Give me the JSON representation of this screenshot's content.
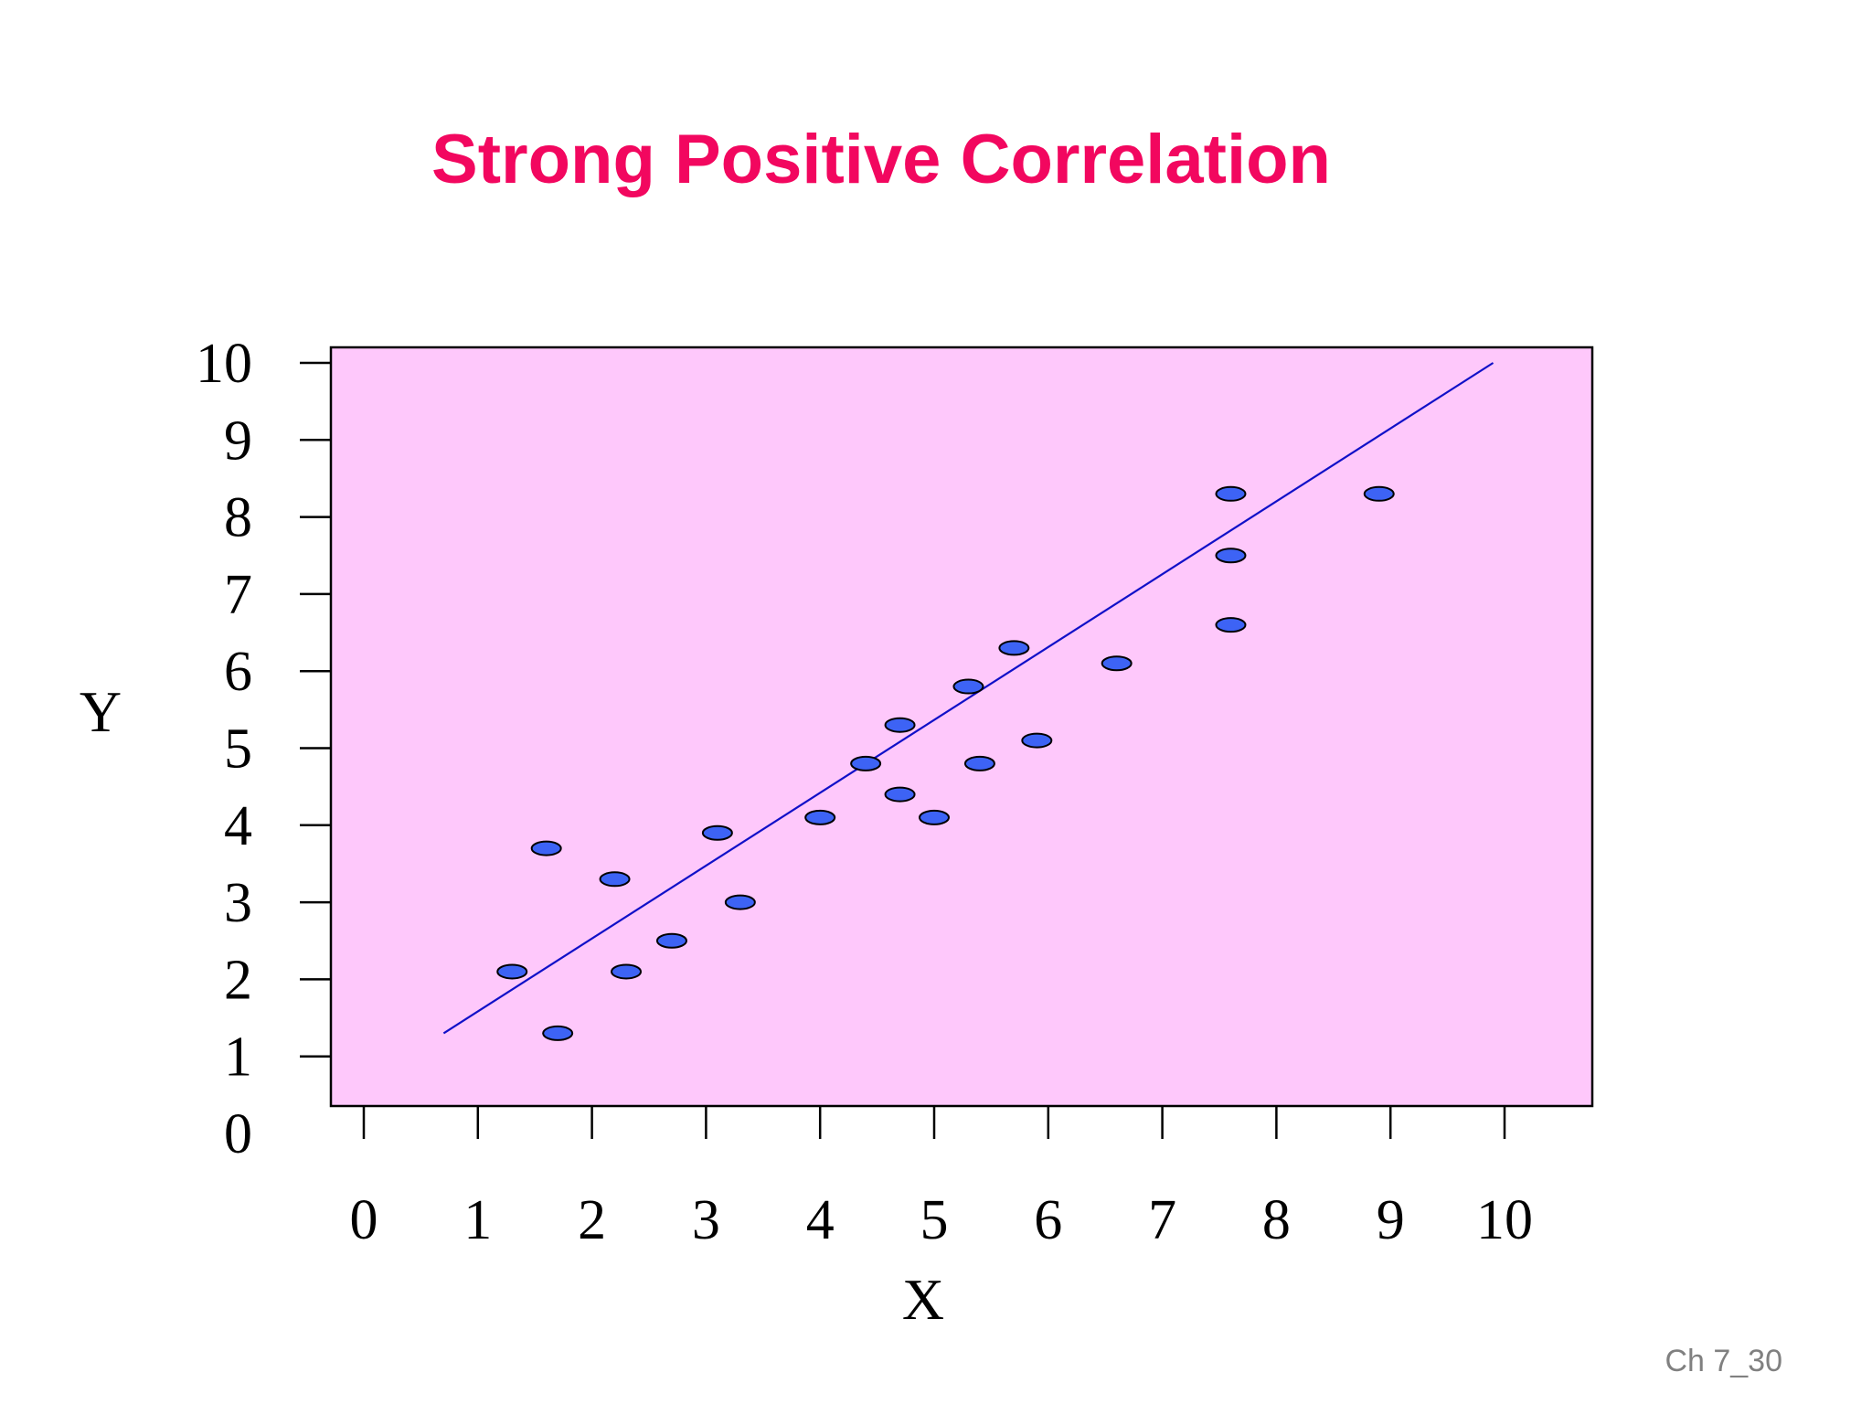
{
  "slide": {
    "footer": "Ch 7_30"
  },
  "colors": {
    "title": "#f2075f",
    "plot_background": "#fec8fb",
    "point_fill": "#3d63f5",
    "trend_line": "#1010c8"
  },
  "chart_data": {
    "type": "scatter",
    "title": "Strong Positive Correlation",
    "xlabel": "X",
    "ylabel": "Y",
    "xlim": [
      0,
      10
    ],
    "ylim": [
      0,
      10
    ],
    "x_ticks": [
      {
        "value": 0,
        "label": "0"
      },
      {
        "value": 1,
        "label": "1"
      },
      {
        "value": 2,
        "label": "2"
      },
      {
        "value": 3,
        "label": "3"
      },
      {
        "value": 4,
        "label": "4"
      },
      {
        "value": 5,
        "label": "5"
      },
      {
        "value": 6,
        "label": "6"
      },
      {
        "value": 7,
        "label": "7"
      },
      {
        "value": 8,
        "label": "8"
      },
      {
        "value": 9,
        "label": "9"
      },
      {
        "value": 10,
        "label": "10"
      }
    ],
    "y_ticks": [
      {
        "value": 0,
        "label": "0"
      },
      {
        "value": 1,
        "label": "1"
      },
      {
        "value": 2,
        "label": "2"
      },
      {
        "value": 3,
        "label": "3"
      },
      {
        "value": 4,
        "label": "4"
      },
      {
        "value": 5,
        "label": "5"
      },
      {
        "value": 6,
        "label": "6"
      },
      {
        "value": 7,
        "label": "7"
      },
      {
        "value": 8,
        "label": "8"
      },
      {
        "value": 9,
        "label": "9"
      },
      {
        "value": 10,
        "label": "10"
      }
    ],
    "grid": false,
    "legend": false,
    "points": [
      {
        "x": 1.3,
        "y": 2.1
      },
      {
        "x": 1.6,
        "y": 3.7
      },
      {
        "x": 1.7,
        "y": 1.3
      },
      {
        "x": 2.2,
        "y": 3.3
      },
      {
        "x": 2.3,
        "y": 2.1
      },
      {
        "x": 2.7,
        "y": 2.5
      },
      {
        "x": 3.1,
        "y": 3.9
      },
      {
        "x": 3.3,
        "y": 3.0
      },
      {
        "x": 4.0,
        "y": 4.1
      },
      {
        "x": 4.4,
        "y": 4.8
      },
      {
        "x": 4.7,
        "y": 5.3
      },
      {
        "x": 4.7,
        "y": 4.4
      },
      {
        "x": 5.0,
        "y": 4.1
      },
      {
        "x": 5.3,
        "y": 5.8
      },
      {
        "x": 5.4,
        "y": 4.8
      },
      {
        "x": 5.7,
        "y": 6.3
      },
      {
        "x": 5.9,
        "y": 5.1
      },
      {
        "x": 6.6,
        "y": 6.1
      },
      {
        "x": 7.6,
        "y": 8.3
      },
      {
        "x": 7.6,
        "y": 7.5
      },
      {
        "x": 7.6,
        "y": 6.6
      },
      {
        "x": 8.9,
        "y": 8.3
      }
    ],
    "trend_line": {
      "x": [
        0.7,
        9.9
      ],
      "y": [
        1.3,
        10.0
      ]
    }
  }
}
